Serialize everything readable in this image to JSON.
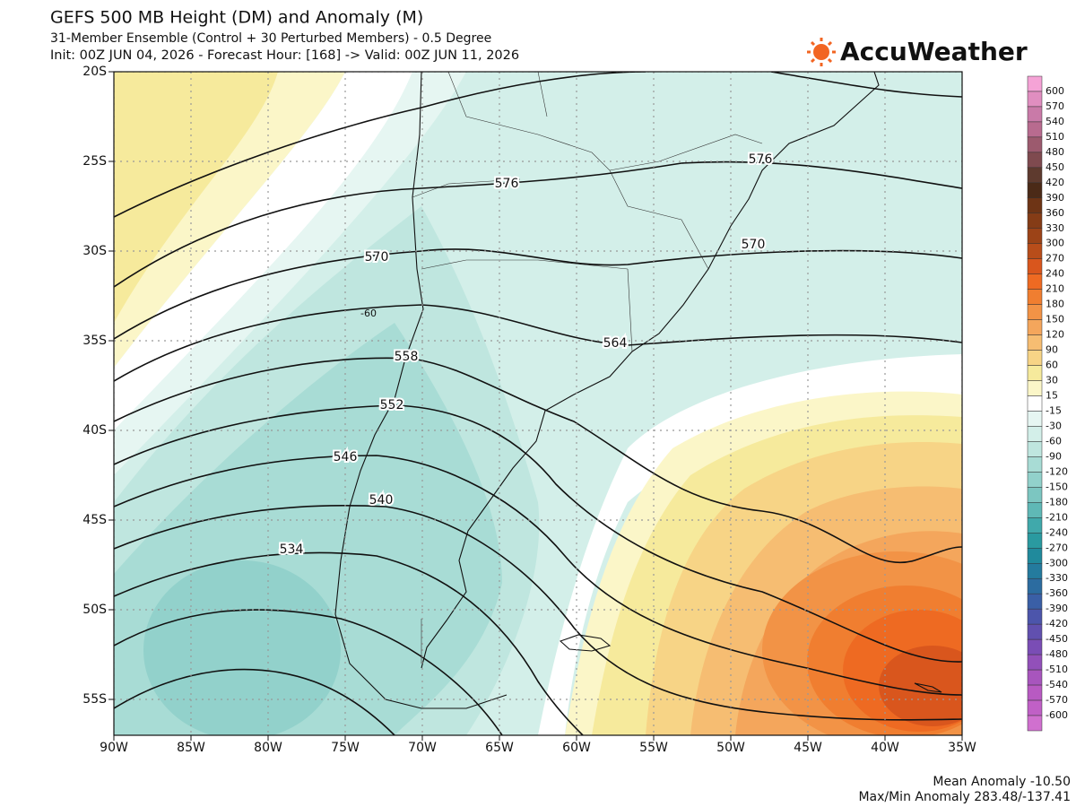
{
  "header": {
    "title": "GEFS 500 MB Height (DM) and Anomaly (M)",
    "subtitle": "31-Member Ensemble (Control + 30 Perturbed Members) - 0.5 Degree",
    "init_line": "Init: 00Z JUN 04, 2026 - Forecast Hour: [168] -> Valid: 00Z JUN 11, 2026"
  },
  "logo": "AccuWeather",
  "map": {
    "lat_lim": [
      -20,
      -57
    ],
    "lon_lim": [
      -90,
      -35
    ],
    "lat_ticks": [
      {
        "value": -20,
        "label": "20S"
      },
      {
        "value": -25,
        "label": "25S"
      },
      {
        "value": -30,
        "label": "30S"
      },
      {
        "value": -35,
        "label": "35S"
      },
      {
        "value": -40,
        "label": "40S"
      },
      {
        "value": -45,
        "label": "45S"
      },
      {
        "value": -50,
        "label": "50S"
      },
      {
        "value": -55,
        "label": "55S"
      }
    ],
    "lon_ticks": [
      {
        "value": -90,
        "label": "90W"
      },
      {
        "value": -85,
        "label": "85W"
      },
      {
        "value": -80,
        "label": "80W"
      },
      {
        "value": -75,
        "label": "75W"
      },
      {
        "value": -70,
        "label": "70W"
      },
      {
        "value": -65,
        "label": "65W"
      },
      {
        "value": -60,
        "label": "60W"
      },
      {
        "value": -55,
        "label": "55W"
      },
      {
        "value": -50,
        "label": "50W"
      },
      {
        "value": -45,
        "label": "45W"
      },
      {
        "value": -40,
        "label": "40W"
      },
      {
        "value": -35,
        "label": "35W"
      }
    ],
    "contour_labels": [
      576,
      576,
      570,
      570,
      564,
      558,
      552,
      546,
      540,
      534,
      -60
    ]
  },
  "colorbar": {
    "labels": [
      600,
      570,
      540,
      510,
      480,
      450,
      420,
      390,
      360,
      330,
      300,
      270,
      240,
      210,
      180,
      150,
      120,
      90,
      60,
      30,
      15,
      -15,
      -30,
      -60,
      -90,
      -120,
      -150,
      -180,
      -210,
      -240,
      -270,
      -300,
      -330,
      -360,
      -390,
      -420,
      -450,
      -480,
      -510,
      -540,
      -570,
      -600
    ],
    "colors": [
      "#f5a3d6",
      "#e08ec0",
      "#c97aa8",
      "#b86b8f",
      "#9c5a6e",
      "#7f4a4f",
      "#5e3a2e",
      "#4b2a17",
      "#6e3415",
      "#853c16",
      "#9c4317",
      "#b84d1a",
      "#d9561d",
      "#ee6a22",
      "#f07e30",
      "#f29346",
      "#f4a65c",
      "#f6bd72",
      "#f7d486",
      "#f6ea9c",
      "#fbf6c8",
      "#ffffff",
      "#e6f6f2",
      "#d3efe9",
      "#bfe6df",
      "#a8dcd5",
      "#92d1cb",
      "#7cc6c1",
      "#5fb8b6",
      "#40a9ab",
      "#2a9aa0",
      "#208a9c",
      "#247b9e",
      "#2c6ca0",
      "#3a5fa6",
      "#4c55ab",
      "#6150af",
      "#7a4db5",
      "#9250b9",
      "#a855bd",
      "#b85ac2",
      "#c060c6",
      "#d070cf"
    ]
  },
  "footer": {
    "mean_anomaly": "Mean Anomaly -10.50",
    "max_min_anomaly": "Max/Min Anomaly 283.48/-137.41"
  }
}
